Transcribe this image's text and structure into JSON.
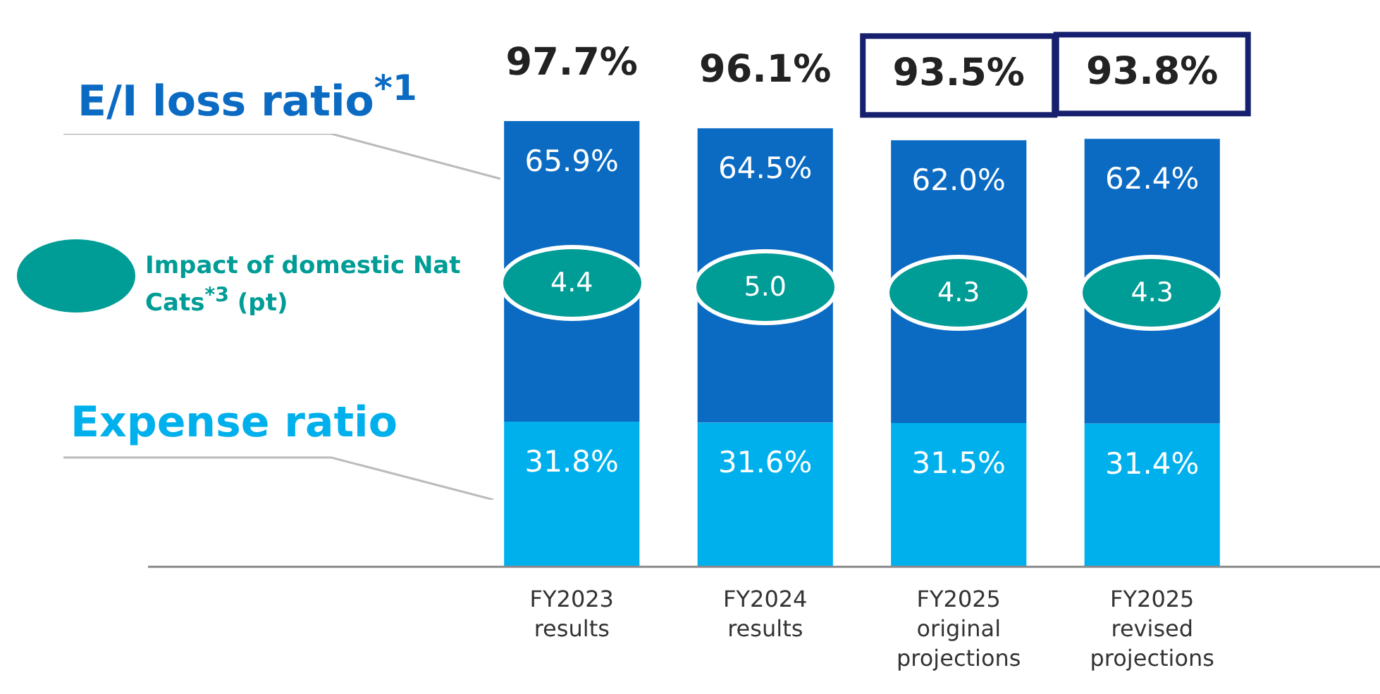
{
  "chart_data": {
    "type": "bar",
    "stacked": true,
    "categories": [
      "FY2023 results",
      "FY2024 results",
      "FY2025 original projections",
      "FY2025 revised projections"
    ],
    "series": [
      {
        "name": "Expense ratio",
        "color": "#00b0ec",
        "values": [
          31.8,
          31.6,
          31.5,
          31.4
        ],
        "value_labels": [
          "31.8%",
          "31.6%",
          "31.5%",
          "31.4%"
        ]
      },
      {
        "name": "E/I loss ratio$^{*1}$",
        "color": "#0b6bc3",
        "values": [
          65.9,
          64.5,
          62.0,
          62.4
        ],
        "value_labels": [
          "65.9%",
          "64.5%",
          "62.0%",
          "62.4%"
        ]
      }
    ],
    "totals": [
      "97.7%",
      "96.1%",
      null,
      null
    ],
    "annotations": [
      {
        "text": "93.5%",
        "x": "FY2025 original projections",
        "y": 93.5
      },
      {
        "text": "93.8%",
        "x": "FY2025 revised projections",
        "y": 93.8
      },
      "Impact of domestic Nat Cats$^{*3}$ (pt)",
      "4.4",
      "5.0",
      "4.3",
      "4.3"
    ],
    "legend": false,
    "grid": false
  }
}
